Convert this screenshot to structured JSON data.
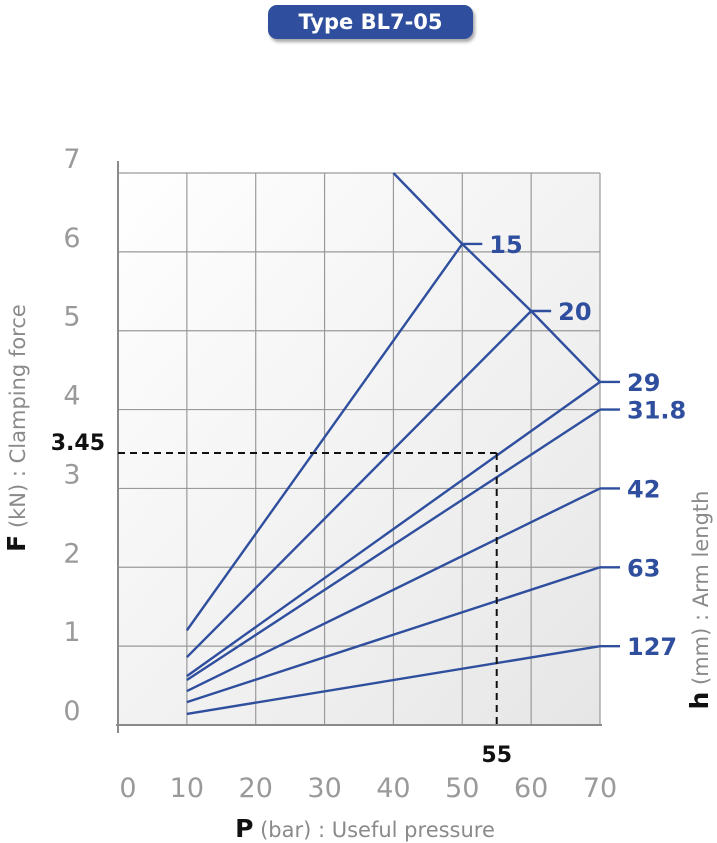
{
  "chart_data": {
    "type": "line",
    "title": "Type BL7-05",
    "xlabel": {
      "symbol": "P",
      "rest": " (bar) : Useful pressure"
    },
    "ylabel": {
      "symbol": "F",
      "rest": " (kN) : Clamping force"
    },
    "legend_title": {
      "symbol": "h",
      "rest": " (mm) : Arm length"
    },
    "x_ticks": [
      0,
      10,
      20,
      30,
      40,
      50,
      60,
      70
    ],
    "y_ticks": [
      0,
      1,
      2,
      3,
      4,
      5,
      6,
      7
    ],
    "xlim": [
      0,
      70
    ],
    "ylim": [
      0,
      7
    ],
    "grid": true,
    "series": [
      {
        "name": "15",
        "points": [
          [
            10,
            1.2
          ],
          [
            50,
            6.1
          ]
        ]
      },
      {
        "name": "20",
        "points": [
          [
            10,
            0.86
          ],
          [
            60,
            5.25
          ]
        ]
      },
      {
        "name": "29",
        "points": [
          [
            10,
            0.62
          ],
          [
            70,
            4.35
          ]
        ]
      },
      {
        "name": "31.8",
        "points": [
          [
            10,
            0.57
          ],
          [
            70,
            4.0
          ]
        ]
      },
      {
        "name": "42",
        "points": [
          [
            10,
            0.43
          ],
          [
            70,
            3.0
          ]
        ]
      },
      {
        "name": "63",
        "points": [
          [
            10,
            0.29
          ],
          [
            70,
            2.0
          ]
        ]
      },
      {
        "name": "127",
        "points": [
          [
            10,
            0.14
          ],
          [
            70,
            1.0
          ]
        ]
      }
    ],
    "limit_line": {
      "points": [
        [
          40,
          7.0
        ],
        [
          50,
          6.1
        ],
        [
          60,
          5.25
        ],
        [
          70,
          4.35
        ]
      ]
    },
    "annotation": {
      "x": 55,
      "y": 3.45,
      "x_label": "55",
      "y_label": "3.45"
    },
    "colors": {
      "series": "#2f4f9e",
      "grid": "#9a9a9a",
      "dashed": "#111111"
    }
  }
}
